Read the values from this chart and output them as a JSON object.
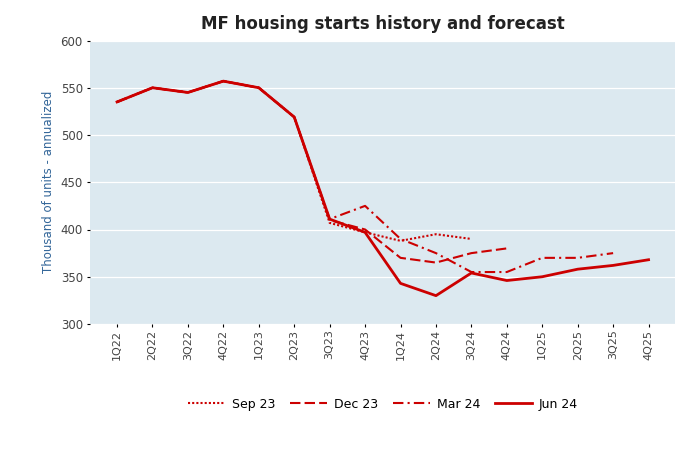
{
  "title": "MF housing starts history and forecast",
  "ylabel": "Thousand of units - annualized",
  "ylim": [
    300,
    600
  ],
  "yticks": [
    300,
    350,
    400,
    450,
    500,
    550,
    600
  ],
  "plot_bg": "#dce9f5",
  "fig_bg": "#ffffff",
  "line_color": "#cc0000",
  "quarters": [
    "1Q22",
    "2Q22",
    "3Q22",
    "4Q22",
    "1Q23",
    "2Q23",
    "3Q23",
    "4Q23",
    "1Q24",
    "2Q24",
    "3Q24",
    "4Q24",
    "1Q25",
    "2Q25",
    "3Q25",
    "4Q25"
  ],
  "sep23": [
    535,
    550,
    545,
    557,
    550,
    519,
    407,
    397,
    388,
    395,
    390,
    null,
    null,
    null,
    null,
    null
  ],
  "dec23": [
    535,
    550,
    545,
    557,
    550,
    519,
    410,
    400,
    370,
    365,
    375,
    380,
    null,
    null,
    null,
    null
  ],
  "mar24": [
    535,
    550,
    545,
    557,
    550,
    519,
    411,
    425,
    390,
    375,
    355,
    355,
    370,
    370,
    375,
    null
  ],
  "jun24": [
    535,
    550,
    545,
    557,
    550,
    519,
    411,
    397,
    343,
    330,
    354,
    346,
    350,
    358,
    362,
    368
  ],
  "legend_labels": [
    "Sep 23",
    "Dec 23",
    "Mar 24",
    "Jun 24"
  ]
}
